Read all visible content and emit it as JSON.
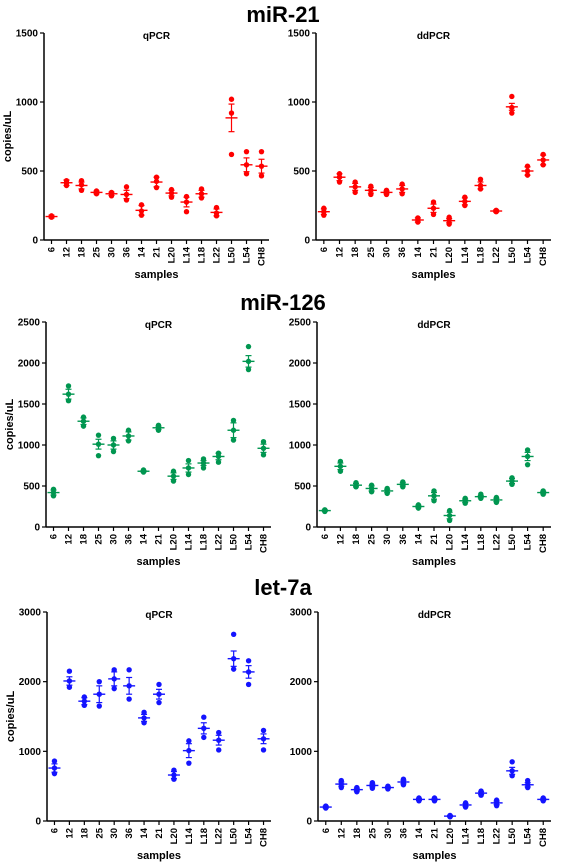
{
  "rows": [
    {
      "title": "miR-21"
    },
    {
      "title": "miR-126"
    },
    {
      "title": "let-7a"
    }
  ],
  "chart_data": [
    {
      "type": "scatter",
      "group": "miR-21",
      "title": "qPCR",
      "color": "#ff0000",
      "xlabel": "samples",
      "ylabel": "copies/uL",
      "ylim": [
        0,
        1500
      ],
      "yticks": [
        0,
        500,
        1000,
        1500
      ],
      "categories": [
        "6",
        "12",
        "18",
        "25",
        "30",
        "36",
        "14",
        "21",
        "L20",
        "L14",
        "L18",
        "L22",
        "L50",
        "L54",
        "CH8"
      ],
      "mean": [
        170,
        415,
        395,
        345,
        335,
        330,
        215,
        420,
        340,
        275,
        335,
        200,
        885,
        545,
        535
      ],
      "sem": [
        10,
        20,
        25,
        10,
        12,
        30,
        35,
        35,
        20,
        35,
        25,
        25,
        100,
        50,
        50
      ],
      "points": [
        [
          165,
          170,
          175
        ],
        [
          395,
          415,
          430
        ],
        [
          360,
          400,
          430
        ],
        [
          335,
          345,
          355
        ],
        [
          320,
          335,
          345
        ],
        [
          290,
          330,
          385
        ],
        [
          180,
          210,
          255
        ],
        [
          380,
          425,
          455
        ],
        [
          310,
          340,
          365
        ],
        [
          205,
          275,
          315
        ],
        [
          305,
          335,
          370
        ],
        [
          175,
          195,
          235
        ],
        [
          620,
          920,
          1020
        ],
        [
          480,
          545,
          640
        ],
        [
          465,
          535,
          640
        ]
      ]
    },
    {
      "type": "scatter",
      "group": "miR-21",
      "title": "ddPCR",
      "color": "#ff0000",
      "xlabel": "samples",
      "ylabel": "",
      "ylim": [
        0,
        1500
      ],
      "yticks": [
        0,
        500,
        1000,
        1500
      ],
      "categories": [
        "6",
        "12",
        "18",
        "25",
        "30",
        "36",
        "14",
        "21",
        "L20",
        "L14",
        "L18",
        "L22",
        "L50",
        "L54",
        "CH8"
      ],
      "mean": [
        205,
        455,
        385,
        360,
        345,
        370,
        145,
        230,
        140,
        280,
        395,
        210,
        965,
        500,
        580
      ],
      "sem": [
        20,
        25,
        25,
        20,
        10,
        25,
        15,
        30,
        15,
        25,
        25,
        8,
        25,
        30,
        35
      ],
      "points": [
        [
          180,
          205,
          230
        ],
        [
          420,
          455,
          480
        ],
        [
          345,
          385,
          420
        ],
        [
          330,
          360,
          390
        ],
        [
          330,
          345,
          360
        ],
        [
          335,
          370,
          405
        ],
        [
          130,
          145,
          160
        ],
        [
          185,
          230,
          275
        ],
        [
          115,
          140,
          165
        ],
        [
          250,
          280,
          310
        ],
        [
          370,
          395,
          440
        ],
        [
          205,
          210,
          215
        ],
        [
          920,
          960,
          1040
        ],
        [
          470,
          500,
          535
        ],
        [
          545,
          580,
          620
        ]
      ]
    },
    {
      "type": "scatter",
      "group": "miR-126",
      "title": "qPCR",
      "color": "#009650",
      "xlabel": "samples",
      "ylabel": "copies/uL",
      "ylim": [
        0,
        2500
      ],
      "yticks": [
        0,
        500,
        1000,
        1500,
        2000,
        2500
      ],
      "categories": [
        "6",
        "12",
        "18",
        "25",
        "30",
        "36",
        "14",
        "21",
        "L20",
        "L14",
        "L18",
        "L22",
        "L50",
        "L54",
        "CH8"
      ],
      "mean": [
        420,
        1620,
        1290,
        1010,
        1000,
        1110,
        680,
        1210,
        620,
        720,
        780,
        860,
        1180,
        2020,
        960
      ],
      "sem": [
        30,
        60,
        40,
        60,
        50,
        50,
        10,
        20,
        40,
        50,
        30,
        40,
        90,
        70,
        50
      ],
      "points": [
        [
          380,
          420,
          460
        ],
        [
          1540,
          1620,
          1720
        ],
        [
          1230,
          1290,
          1340
        ],
        [
          870,
          1010,
          1120
        ],
        [
          920,
          1000,
          1080
        ],
        [
          1050,
          1110,
          1180
        ],
        [
          670,
          680,
          695
        ],
        [
          1180,
          1210,
          1240
        ],
        [
          560,
          620,
          680
        ],
        [
          640,
          720,
          810
        ],
        [
          720,
          780,
          830
        ],
        [
          790,
          860,
          900
        ],
        [
          1060,
          1180,
          1300
        ],
        [
          1920,
          2020,
          2200
        ],
        [
          880,
          960,
          1040
        ]
      ]
    },
    {
      "type": "scatter",
      "group": "miR-126",
      "title": "ddPCR",
      "color": "#009650",
      "xlabel": "samples",
      "ylabel": "",
      "ylim": [
        0,
        2500
      ],
      "yticks": [
        0,
        500,
        1000,
        1500,
        2000,
        2500
      ],
      "categories": [
        "6",
        "12",
        "18",
        "25",
        "30",
        "36",
        "14",
        "21",
        "L20",
        "L14",
        "L18",
        "L22",
        "L50",
        "L54",
        "CH8"
      ],
      "mean": [
        200,
        740,
        510,
        470,
        440,
        520,
        250,
        380,
        140,
        320,
        370,
        330,
        560,
        860,
        420
      ],
      "sem": [
        10,
        40,
        20,
        30,
        20,
        20,
        15,
        40,
        40,
        20,
        15,
        20,
        30,
        50,
        15
      ],
      "points": [
        [
          190,
          200,
          210
        ],
        [
          680,
          740,
          800
        ],
        [
          490,
          510,
          540
        ],
        [
          430,
          470,
          510
        ],
        [
          410,
          440,
          470
        ],
        [
          490,
          520,
          550
        ],
        [
          230,
          250,
          270
        ],
        [
          320,
          380,
          440
        ],
        [
          80,
          140,
          200
        ],
        [
          290,
          320,
          350
        ],
        [
          350,
          370,
          400
        ],
        [
          300,
          330,
          360
        ],
        [
          520,
          560,
          600
        ],
        [
          760,
          860,
          940
        ],
        [
          400,
          420,
          440
        ]
      ]
    },
    {
      "type": "scatter",
      "group": "let-7a",
      "title": "qPCR",
      "color": "#1414ff",
      "xlabel": "samples",
      "ylabel": "copies/uL",
      "ylim": [
        0,
        3000
      ],
      "yticks": [
        0,
        1000,
        2000,
        3000
      ],
      "categories": [
        "6",
        "12",
        "18",
        "25",
        "30",
        "36",
        "14",
        "21",
        "L20",
        "L14",
        "L18",
        "L22",
        "L50",
        "L54",
        "CH8"
      ],
      "mean": [
        760,
        2010,
        1720,
        1820,
        2040,
        1940,
        1480,
        1820,
        660,
        1010,
        1330,
        1160,
        2330,
        2140,
        1180
      ],
      "sem": [
        60,
        60,
        50,
        120,
        100,
        120,
        50,
        70,
        50,
        100,
        80,
        70,
        110,
        90,
        70
      ],
      "points": [
        [
          680,
          760,
          860
        ],
        [
          1920,
          2010,
          2150
        ],
        [
          1660,
          1720,
          1780
        ],
        [
          1650,
          1820,
          2000
        ],
        [
          1900,
          2040,
          2170
        ],
        [
          1750,
          1940,
          2170
        ],
        [
          1410,
          1480,
          1560
        ],
        [
          1700,
          1820,
          1960
        ],
        [
          600,
          660,
          730
        ],
        [
          830,
          1010,
          1150
        ],
        [
          1200,
          1330,
          1490
        ],
        [
          1020,
          1160,
          1270
        ],
        [
          2180,
          2330,
          2680
        ],
        [
          1960,
          2140,
          2300
        ],
        [
          1020,
          1180,
          1300
        ]
      ]
    },
    {
      "type": "scatter",
      "group": "let-7a",
      "title": "ddPCR",
      "color": "#1414ff",
      "xlabel": "samples",
      "ylabel": "",
      "ylim": [
        0,
        3000
      ],
      "yticks": [
        0,
        1000,
        2000,
        3000
      ],
      "categories": [
        "6",
        "12",
        "18",
        "25",
        "30",
        "36",
        "14",
        "21",
        "L20",
        "L14",
        "L18",
        "L22",
        "L50",
        "L54",
        "CH8"
      ],
      "mean": [
        200,
        530,
        450,
        510,
        480,
        560,
        310,
        310,
        70,
        230,
        400,
        260,
        720,
        520,
        310
      ],
      "sem": [
        15,
        30,
        20,
        20,
        10,
        25,
        15,
        15,
        10,
        20,
        20,
        25,
        50,
        30,
        15
      ],
      "points": [
        [
          185,
          200,
          215
        ],
        [
          480,
          530,
          580
        ],
        [
          420,
          450,
          480
        ],
        [
          470,
          510,
          550
        ],
        [
          460,
          480,
          500
        ],
        [
          520,
          560,
          600
        ],
        [
          290,
          310,
          330
        ],
        [
          290,
          310,
          330
        ],
        [
          60,
          70,
          80
        ],
        [
          200,
          230,
          260
        ],
        [
          370,
          400,
          430
        ],
        [
          220,
          260,
          300
        ],
        [
          650,
          720,
          850
        ],
        [
          480,
          520,
          580
        ],
        [
          290,
          310,
          330
        ]
      ]
    }
  ]
}
